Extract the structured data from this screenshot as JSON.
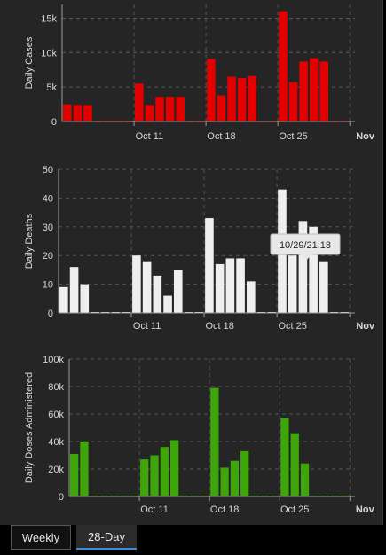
{
  "colors": {
    "cases": "#e50000",
    "deaths": "#efefef",
    "doses": "#3ea60a",
    "grid": "#555555",
    "axis": "#9a9a9a"
  },
  "tabs": {
    "weekly": "Weekly",
    "day28": "28-Day"
  },
  "tooltip": {
    "text": "10/29/21:18"
  },
  "chart_data": [
    {
      "type": "bar",
      "title": "",
      "ylabel": "Daily Cases",
      "ylim": [
        0,
        17000
      ],
      "yticks": [
        0,
        5000,
        10000,
        15000
      ],
      "ytick_labels": [
        "0",
        "5k",
        "10k",
        "15k"
      ],
      "xtick_labels": [
        "Oct 11",
        "Oct 18",
        "Oct 25",
        "Nov"
      ],
      "x": [
        "Oct 4",
        "Oct 5",
        "Oct 6",
        "Oct 7",
        "Oct 8",
        "Oct 9",
        "Oct 10",
        "Oct 11",
        "Oct 12",
        "Oct 13",
        "Oct 14",
        "Oct 15",
        "Oct 16",
        "Oct 17",
        "Oct 18",
        "Oct 19",
        "Oct 20",
        "Oct 21",
        "Oct 22",
        "Oct 23",
        "Oct 24",
        "Oct 25",
        "Oct 26",
        "Oct 27",
        "Oct 28",
        "Oct 29",
        "Oct 30",
        "Oct 31"
      ],
      "values": [
        2500,
        2400,
        2400,
        0,
        0,
        0,
        0,
        5500,
        2400,
        3600,
        3600,
        3600,
        0,
        0,
        9100,
        3800,
        6500,
        6300,
        6600,
        0,
        0,
        16000,
        5700,
        8700,
        9200,
        8700,
        0,
        0
      ],
      "grid": true
    },
    {
      "type": "bar",
      "title": "",
      "ylabel": "Daily Deaths",
      "ylim": [
        0,
        50
      ],
      "yticks": [
        0,
        10,
        20,
        30,
        40,
        50
      ],
      "ytick_labels": [
        "0",
        "10",
        "20",
        "30",
        "40",
        "50"
      ],
      "xtick_labels": [
        "Oct 11",
        "Oct 18",
        "Oct 25",
        "Nov"
      ],
      "x": [
        "Oct 4",
        "Oct 5",
        "Oct 6",
        "Oct 7",
        "Oct 8",
        "Oct 9",
        "Oct 10",
        "Oct 11",
        "Oct 12",
        "Oct 13",
        "Oct 14",
        "Oct 15",
        "Oct 16",
        "Oct 17",
        "Oct 18",
        "Oct 19",
        "Oct 20",
        "Oct 21",
        "Oct 22",
        "Oct 23",
        "Oct 24",
        "Oct 25",
        "Oct 26",
        "Oct 27",
        "Oct 28",
        "Oct 29",
        "Oct 30",
        "Oct 31"
      ],
      "values": [
        9,
        16,
        10,
        0,
        0,
        0,
        0,
        20,
        18,
        13,
        6,
        15,
        0,
        0,
        33,
        17,
        19,
        19,
        11,
        0,
        0,
        43,
        20,
        32,
        30,
        18,
        0,
        0
      ],
      "grid": true
    },
    {
      "type": "bar",
      "title": "",
      "ylabel": "Daily Doses Administered",
      "ylim": [
        0,
        100000
      ],
      "yticks": [
        0,
        20000,
        40000,
        60000,
        80000,
        100000
      ],
      "ytick_labels": [
        "0",
        "20k",
        "40k",
        "60k",
        "80k",
        "100k"
      ],
      "xtick_labels": [
        "Oct 11",
        "Oct 18",
        "Oct 25",
        "Nov"
      ],
      "x": [
        "Oct 4",
        "Oct 5",
        "Oct 6",
        "Oct 7",
        "Oct 8",
        "Oct 9",
        "Oct 10",
        "Oct 11",
        "Oct 12",
        "Oct 13",
        "Oct 14",
        "Oct 15",
        "Oct 16",
        "Oct 17",
        "Oct 18",
        "Oct 19",
        "Oct 20",
        "Oct 21",
        "Oct 22",
        "Oct 23",
        "Oct 24",
        "Oct 25",
        "Oct 26",
        "Oct 27",
        "Oct 28",
        "Oct 29",
        "Oct 30",
        "Oct 31"
      ],
      "values": [
        31000,
        40000,
        0,
        0,
        0,
        0,
        0,
        27000,
        30000,
        36000,
        41000,
        0,
        0,
        0,
        79000,
        21000,
        26000,
        33000,
        0,
        0,
        0,
        57000,
        46000,
        24000,
        0,
        0,
        0,
        0
      ],
      "grid": true
    }
  ]
}
